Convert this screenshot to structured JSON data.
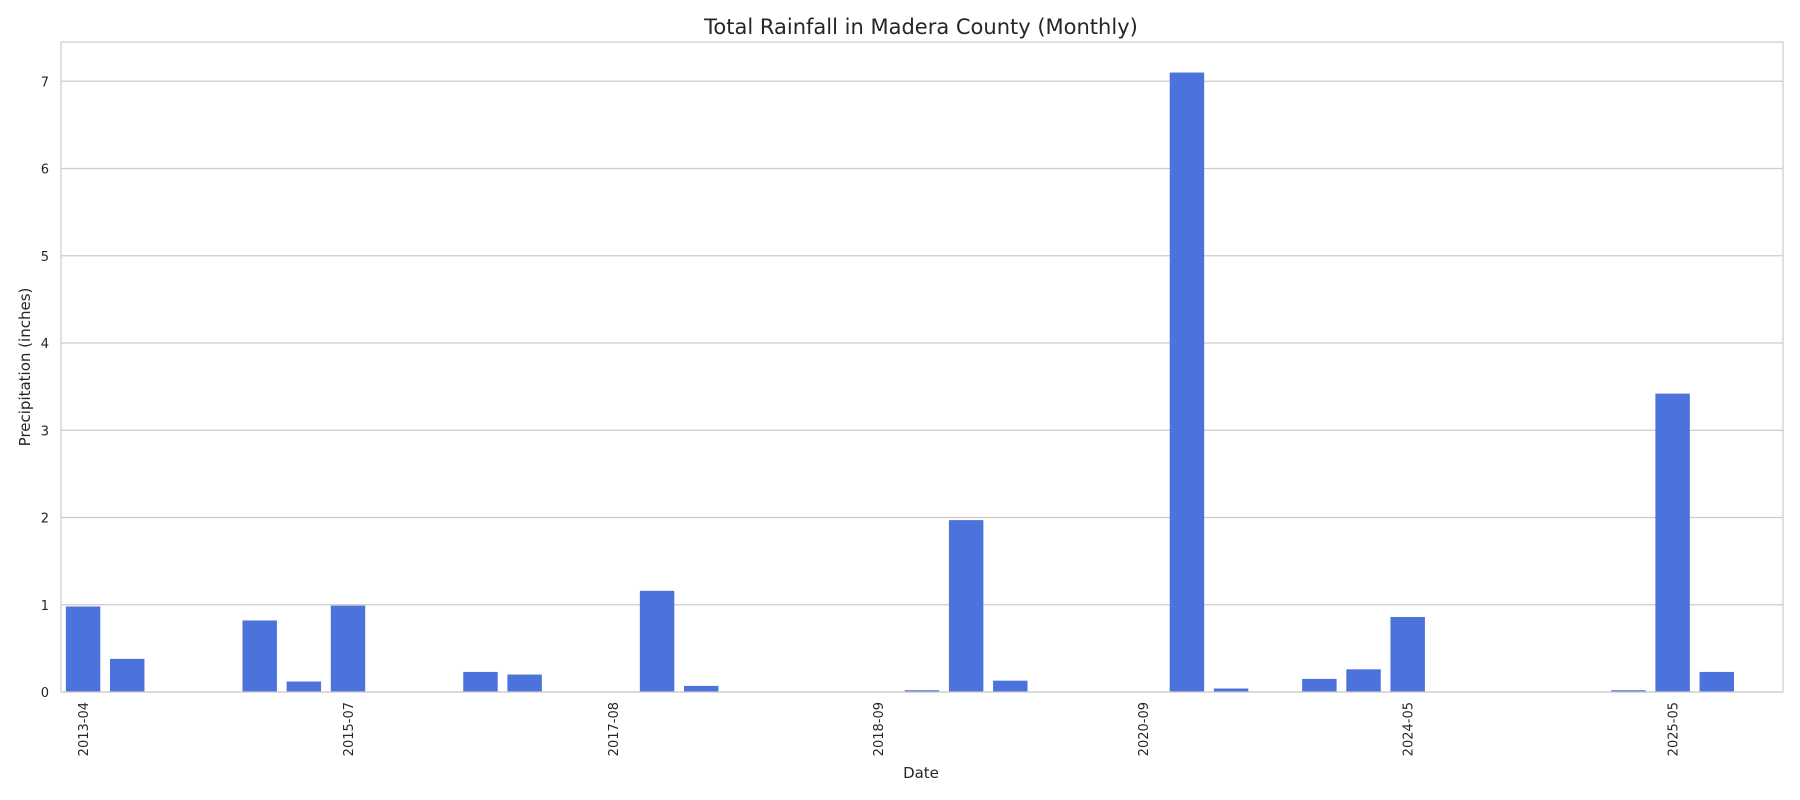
{
  "chart_data": {
    "type": "bar",
    "title": "Total Rainfall in Madera County (Monthly)",
    "xlabel": "Date",
    "ylabel": "Precipitation (inches)",
    "ylim": [
      0,
      7.45
    ],
    "yticks": [
      0,
      1,
      2,
      3,
      4,
      5,
      6,
      7
    ],
    "grid": true,
    "color": "#4C72DB",
    "tick_every": 6,
    "categories": [
      "2013-04",
      "",
      "",
      "",
      "",
      "",
      "2015-07",
      "",
      "",
      "",
      "",
      "",
      "2017-08",
      "",
      "",
      "",
      "",
      "",
      "2018-09",
      "",
      "",
      "",
      "",
      "",
      "2020-09",
      "",
      "",
      "",
      "",
      "",
      "2024-05",
      "",
      "",
      "",
      "",
      "",
      "2025-05",
      "",
      ""
    ],
    "values": [
      0.98,
      0.38,
      0,
      0,
      0.82,
      0.12,
      0.99,
      0,
      0,
      0.23,
      0.2,
      0,
      0,
      1.16,
      0.07,
      0,
      0,
      0,
      0,
      0.02,
      1.97,
      0.13,
      0,
      0,
      0,
      7.1,
      0.04,
      0,
      0.15,
      0.26,
      0.86,
      0,
      0,
      0,
      0,
      0.02,
      3.42,
      0.23,
      0
    ]
  }
}
